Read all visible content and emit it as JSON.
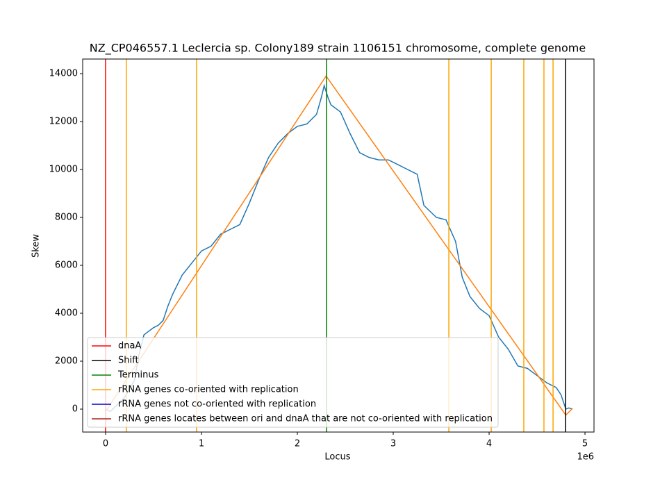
{
  "chart_data": {
    "type": "line",
    "title": "NZ_CP046557.1 Leclercia sp. Colony189 strain 1106151 chromosome, complete genome",
    "x_label": "Locus",
    "y_label": "Skew",
    "x_offset_label": "1e6",
    "xlim": [
      -239000,
      5094000
    ],
    "ylim": [
      -957,
      14609
    ],
    "xticks": [
      {
        "value": 0,
        "label": "0"
      },
      {
        "value": 1000000,
        "label": "1"
      },
      {
        "value": 2000000,
        "label": "2"
      },
      {
        "value": 3000000,
        "label": "3"
      },
      {
        "value": 4000000,
        "label": "4"
      },
      {
        "value": 5000000,
        "label": "5"
      }
    ],
    "yticks": [
      0,
      2000,
      4000,
      6000,
      8000,
      10000,
      12000,
      14000
    ],
    "series": [
      {
        "color": "#1f77b4",
        "x": [
          0,
          50000,
          100000,
          200000,
          300000,
          350000,
          400000,
          500000,
          550000,
          600000,
          650000,
          700000,
          800000,
          900000,
          1000000,
          1100000,
          1200000,
          1300000,
          1400000,
          1500000,
          1600000,
          1700000,
          1800000,
          1900000,
          2000000,
          2100000,
          2200000,
          2250000,
          2280000,
          2320000,
          2350000,
          2450000,
          2550000,
          2650000,
          2750000,
          2850000,
          2950000,
          3050000,
          3150000,
          3250000,
          3320000,
          3450000,
          3550000,
          3650000,
          3720000,
          3800000,
          3900000,
          4000000,
          4100000,
          4200000,
          4300000,
          4400000,
          4500000,
          4600000,
          4700000,
          4750000,
          4800000,
          4830000,
          4870000
        ],
        "values": [
          0,
          -100,
          100,
          500,
          1200,
          2300,
          3100,
          3400,
          3500,
          3700,
          4300,
          4800,
          5600,
          6100,
          6600,
          6800,
          7300,
          7500,
          7700,
          8600,
          9600,
          10500,
          11100,
          11500,
          11800,
          11900,
          12300,
          13000,
          13500,
          13000,
          12700,
          12400,
          11500,
          10700,
          10500,
          10400,
          10400,
          10200,
          10000,
          9800,
          8500,
          8000,
          7900,
          7000,
          5500,
          4700,
          4200,
          3900,
          3000,
          2500,
          1800,
          1700,
          1400,
          1100,
          900,
          600,
          0,
          50,
          0
        ]
      },
      {
        "color": "#ff7f0e",
        "x": [
          0,
          2300000,
          4800000,
          4870000
        ],
        "values": [
          -100,
          13900,
          -250,
          30
        ]
      }
    ],
    "vlines": [
      {
        "name": "dnaA",
        "color": "#ff0000",
        "x": [
          0
        ]
      },
      {
        "name": "Shift",
        "color": "#000000",
        "x": [
          4797000
        ]
      },
      {
        "name": "Terminus",
        "color": "#008000",
        "x": [
          2304000
        ]
      },
      {
        "name": "rRNA genes co-oriented with replication",
        "color": "#ffa500",
        "x": [
          217000,
          949000,
          3580000,
          4022000,
          4362000,
          4572000,
          4667000
        ]
      },
      {
        "name": "rRNA genes not co-oriented with replication",
        "color": "#0000cd",
        "x": []
      },
      {
        "name": "rRNA genes locates between ori and dnaA that are not co-oriented with replication",
        "color": "#b22222",
        "x": []
      }
    ]
  }
}
